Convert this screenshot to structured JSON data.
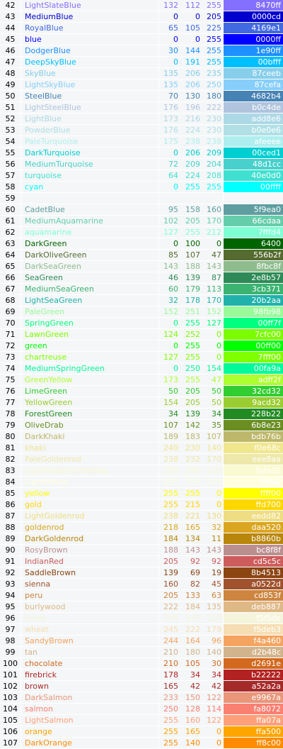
{
  "rows": [
    {
      "n": "42",
      "name": "LightSlateBlue",
      "r": "132",
      "g": "112",
      "b": "255",
      "hex": "8470ff",
      "color": "#8470ff"
    },
    {
      "n": "43",
      "name": "MediumBlue",
      "r": "0",
      "g": "0",
      "b": "205",
      "hex": "0000cd",
      "color": "#0000cd"
    },
    {
      "n": "44",
      "name": "RoyalBlue",
      "r": "65",
      "g": "105",
      "b": "225",
      "hex": "4169e1",
      "color": "#4169e1"
    },
    {
      "n": "45",
      "name": "blue",
      "r": "0",
      "g": "0",
      "b": "255",
      "hex": "0000ff",
      "color": "#0000ff"
    },
    {
      "n": "46",
      "name": "DodgerBlue",
      "r": "30",
      "g": "144",
      "b": "255",
      "hex": "1e90ff",
      "color": "#1e90ff"
    },
    {
      "n": "47",
      "name": "DeepSkyBlue",
      "r": "0",
      "g": "191",
      "b": "255",
      "hex": "00bfff",
      "color": "#00bfff"
    },
    {
      "n": "48",
      "name": "SkyBlue",
      "r": "135",
      "g": "206",
      "b": "235",
      "hex": "87ceeb",
      "color": "#87ceeb"
    },
    {
      "n": "49",
      "name": "LightSkyBlue",
      "r": "135",
      "g": "206",
      "b": "250",
      "hex": "87cefa",
      "color": "#87cefa"
    },
    {
      "n": "50",
      "name": "SteelBlue",
      "r": "70",
      "g": "130",
      "b": "180",
      "hex": "4682b4",
      "color": "#4682b4"
    },
    {
      "n": "51",
      "name": "LightSteelBlue",
      "r": "176",
      "g": "196",
      "b": "222",
      "hex": "b0c4de",
      "color": "#b0c4de"
    },
    {
      "n": "52",
      "name": "LightBlue",
      "r": "173",
      "g": "216",
      "b": "230",
      "hex": "add8e6",
      "color": "#add8e6"
    },
    {
      "n": "53",
      "name": "PowderBlue",
      "r": "176",
      "g": "224",
      "b": "230",
      "hex": "b0e0e6",
      "color": "#b0e0e6"
    },
    {
      "n": "54",
      "name": "PaleTurquoise",
      "r": "175",
      "g": "238",
      "b": "238",
      "hex": "afeeee",
      "color": "#afeeee"
    },
    {
      "n": "55",
      "name": "DarkTurquoise",
      "r": "0",
      "g": "206",
      "b": "209",
      "hex": "00ced1",
      "color": "#00ced1"
    },
    {
      "n": "56",
      "name": "MediumTurquoise",
      "r": "72",
      "g": "209",
      "b": "204",
      "hex": "48d1cc",
      "color": "#48d1cc"
    },
    {
      "n": "57",
      "name": "turquoise",
      "r": "64",
      "g": "224",
      "b": "208",
      "hex": "40e0d0",
      "color": "#40e0d0"
    },
    {
      "n": "58",
      "name": "cyan",
      "r": "0",
      "g": "255",
      "b": "255",
      "hex": "00ffff",
      "color": "#00ffff"
    },
    {
      "n": "59",
      "name": "",
      "r": "",
      "g": "",
      "b": "",
      "hex": "",
      "color": ""
    },
    {
      "n": "60",
      "name": "CadetBlue",
      "r": "95",
      "g": "158",
      "b": "160",
      "hex": "5f9ea0",
      "color": "#5f9ea0"
    },
    {
      "n": "61",
      "name": "MediumAquamarine",
      "r": "102",
      "g": "205",
      "b": "170",
      "hex": "66cdaa",
      "color": "#66cdaa"
    },
    {
      "n": "62",
      "name": "aquamarine",
      "r": "127",
      "g": "255",
      "b": "212",
      "hex": "7fffd4",
      "color": "#7fffd4"
    },
    {
      "n": "63",
      "name": "DarkGreen",
      "r": "0",
      "g": "100",
      "b": "0",
      "hex": "6400",
      "color": "#006400"
    },
    {
      "n": "64",
      "name": "DarkOliveGreen",
      "r": "85",
      "g": "107",
      "b": "47",
      "hex": "556b2f",
      "color": "#556b2f"
    },
    {
      "n": "65",
      "name": "DarkSeaGreen",
      "r": "143",
      "g": "188",
      "b": "143",
      "hex": "8fbc8f",
      "color": "#8fbc8f"
    },
    {
      "n": "66",
      "name": "SeaGreen",
      "r": "46",
      "g": "139",
      "b": "87",
      "hex": "2e8b57",
      "color": "#2e8b57"
    },
    {
      "n": "67",
      "name": "MediumSeaGreen",
      "r": "60",
      "g": "179",
      "b": "113",
      "hex": "3cb371",
      "color": "#3cb371"
    },
    {
      "n": "68",
      "name": "LightSeaGreen",
      "r": "32",
      "g": "178",
      "b": "170",
      "hex": "20b2aa",
      "color": "#20b2aa"
    },
    {
      "n": "69",
      "name": "PaleGreen",
      "r": "152",
      "g": "251",
      "b": "152",
      "hex": "98fb98",
      "color": "#98fb98"
    },
    {
      "n": "70",
      "name": "SpringGreen",
      "r": "0",
      "g": "255",
      "b": "127",
      "hex": "00ff7f",
      "color": "#00ff7f"
    },
    {
      "n": "71",
      "name": "LawnGreen",
      "r": "124",
      "g": "252",
      "b": "0",
      "hex": "7cfc00",
      "color": "#7cfc00"
    },
    {
      "n": "72",
      "name": "green",
      "r": "0",
      "g": "255",
      "b": "0",
      "hex": "00ff00",
      "color": "#00ff00"
    },
    {
      "n": "73",
      "name": "chartreuse",
      "r": "127",
      "g": "255",
      "b": "0",
      "hex": "7fff00",
      "color": "#7fff00"
    },
    {
      "n": "74",
      "name": "MediumSpringGreen",
      "r": "0",
      "g": "250",
      "b": "154",
      "hex": "00fa9a",
      "color": "#00fa9a"
    },
    {
      "n": "75",
      "name": "GreenYellow",
      "r": "173",
      "g": "255",
      "b": "47",
      "hex": "adff2f",
      "color": "#adff2f"
    },
    {
      "n": "76",
      "name": "LimeGreen",
      "r": "50",
      "g": "205",
      "b": "50",
      "hex": "32cd32",
      "color": "#32cd32"
    },
    {
      "n": "77",
      "name": "YellowGreen",
      "r": "154",
      "g": "205",
      "b": "50",
      "hex": "9acd32",
      "color": "#9acd32"
    },
    {
      "n": "78",
      "name": "ForestGreen",
      "r": "34",
      "g": "139",
      "b": "34",
      "hex": "228b22",
      "color": "#228b22"
    },
    {
      "n": "79",
      "name": "OliveDrab",
      "r": "107",
      "g": "142",
      "b": "35",
      "hex": "6b8e23",
      "color": "#6b8e23"
    },
    {
      "n": "80",
      "name": "DarkKhaki",
      "r": "189",
      "g": "183",
      "b": "107",
      "hex": "bdb76b",
      "color": "#bdb76b"
    },
    {
      "n": "81",
      "name": "khaki",
      "r": "240",
      "g": "230",
      "b": "140",
      "hex": "f0e68c",
      "color": "#f0e68c"
    },
    {
      "n": "82",
      "name": "PaleGoldenrod",
      "r": "238",
      "g": "232",
      "b": "170",
      "hex": "eee8aa",
      "color": "#eee8aa"
    },
    {
      "n": "83",
      "name": "LightGoldenrodYellow",
      "r": "250",
      "g": "250",
      "b": "210",
      "hex": "fafad2",
      "color": "#fafad2"
    },
    {
      "n": "84",
      "name": "LightYellow",
      "r": "255",
      "g": "255",
      "b": "224",
      "hex": "ffffe0",
      "color": "#ffffe0"
    },
    {
      "n": "85",
      "name": "yellow",
      "r": "255",
      "g": "255",
      "b": "0",
      "hex": "ffff00",
      "color": "#ffff00"
    },
    {
      "n": "86",
      "name": "gold",
      "r": "255",
      "g": "215",
      "b": "0",
      "hex": "ffd700",
      "color": "#ffd700"
    },
    {
      "n": "87",
      "name": "LightGoldenrod",
      "r": "238",
      "g": "221",
      "b": "130",
      "hex": "eedd82",
      "color": "#eedd82"
    },
    {
      "n": "88",
      "name": "goldenrod",
      "r": "218",
      "g": "165",
      "b": "32",
      "hex": "daa520",
      "color": "#daa520"
    },
    {
      "n": "89",
      "name": "DarkGoldenrod",
      "r": "184",
      "g": "134",
      "b": "11",
      "hex": "b8860b",
      "color": "#b8860b"
    },
    {
      "n": "90",
      "name": "RosyBrown",
      "r": "188",
      "g": "143",
      "b": "143",
      "hex": "bc8f8f",
      "color": "#bc8f8f"
    },
    {
      "n": "91",
      "name": "IndianRed",
      "r": "205",
      "g": "92",
      "b": "92",
      "hex": "cd5c5c",
      "color": "#cd5c5c"
    },
    {
      "n": "92",
      "name": "SaddleBrown",
      "r": "139",
      "g": "69",
      "b": "19",
      "hex": "8b4513",
      "color": "#8b4513"
    },
    {
      "n": "93",
      "name": "sienna",
      "r": "160",
      "g": "82",
      "b": "45",
      "hex": "a0522d",
      "color": "#a0522d"
    },
    {
      "n": "94",
      "name": "peru",
      "r": "205",
      "g": "133",
      "b": "63",
      "hex": "cd853f",
      "color": "#cd853f"
    },
    {
      "n": "95",
      "name": "burlywood",
      "r": "222",
      "g": "184",
      "b": "135",
      "hex": "deb887",
      "color": "#deb887"
    },
    {
      "n": "96",
      "name": "beige",
      "r": "245",
      "g": "245",
      "b": "220",
      "hex": "f5f5dc",
      "color": "#f5f5dc"
    },
    {
      "n": "97",
      "name": "wheat",
      "r": "245",
      "g": "222",
      "b": "179",
      "hex": "f5deb3",
      "color": "#f5deb3"
    },
    {
      "n": "98",
      "name": "SandyBrown",
      "r": "244",
      "g": "164",
      "b": "96",
      "hex": "f4a460",
      "color": "#f4a460"
    },
    {
      "n": "99",
      "name": "tan",
      "r": "210",
      "g": "180",
      "b": "140",
      "hex": "d2b48c",
      "color": "#d2b48c"
    },
    {
      "n": "100",
      "name": "chocolate",
      "r": "210",
      "g": "105",
      "b": "30",
      "hex": "d2691e",
      "color": "#d2691e"
    },
    {
      "n": "101",
      "name": "firebrick",
      "r": "178",
      "g": "34",
      "b": "34",
      "hex": "b22222",
      "color": "#b22222"
    },
    {
      "n": "102",
      "name": "brown",
      "r": "165",
      "g": "42",
      "b": "42",
      "hex": "a52a2a",
      "color": "#a52a2a"
    },
    {
      "n": "103",
      "name": "DarkSalmon",
      "r": "233",
      "g": "150",
      "b": "122",
      "hex": "e9967a",
      "color": "#e9967a"
    },
    {
      "n": "104",
      "name": "salmon",
      "r": "250",
      "g": "128",
      "b": "114",
      "hex": "fa8072",
      "color": "#fa8072"
    },
    {
      "n": "105",
      "name": "LightSalmon",
      "r": "255",
      "g": "160",
      "b": "122",
      "hex": "ffa07a",
      "color": "#ffa07a"
    },
    {
      "n": "106",
      "name": "orange",
      "r": "255",
      "g": "165",
      "b": "0",
      "hex": "ffa500",
      "color": "#ffa500"
    },
    {
      "n": "107",
      "name": "DarkOrange",
      "r": "255",
      "g": "140",
      "b": "0",
      "hex": "ff8c00",
      "color": "#ff8c00"
    }
  ]
}
